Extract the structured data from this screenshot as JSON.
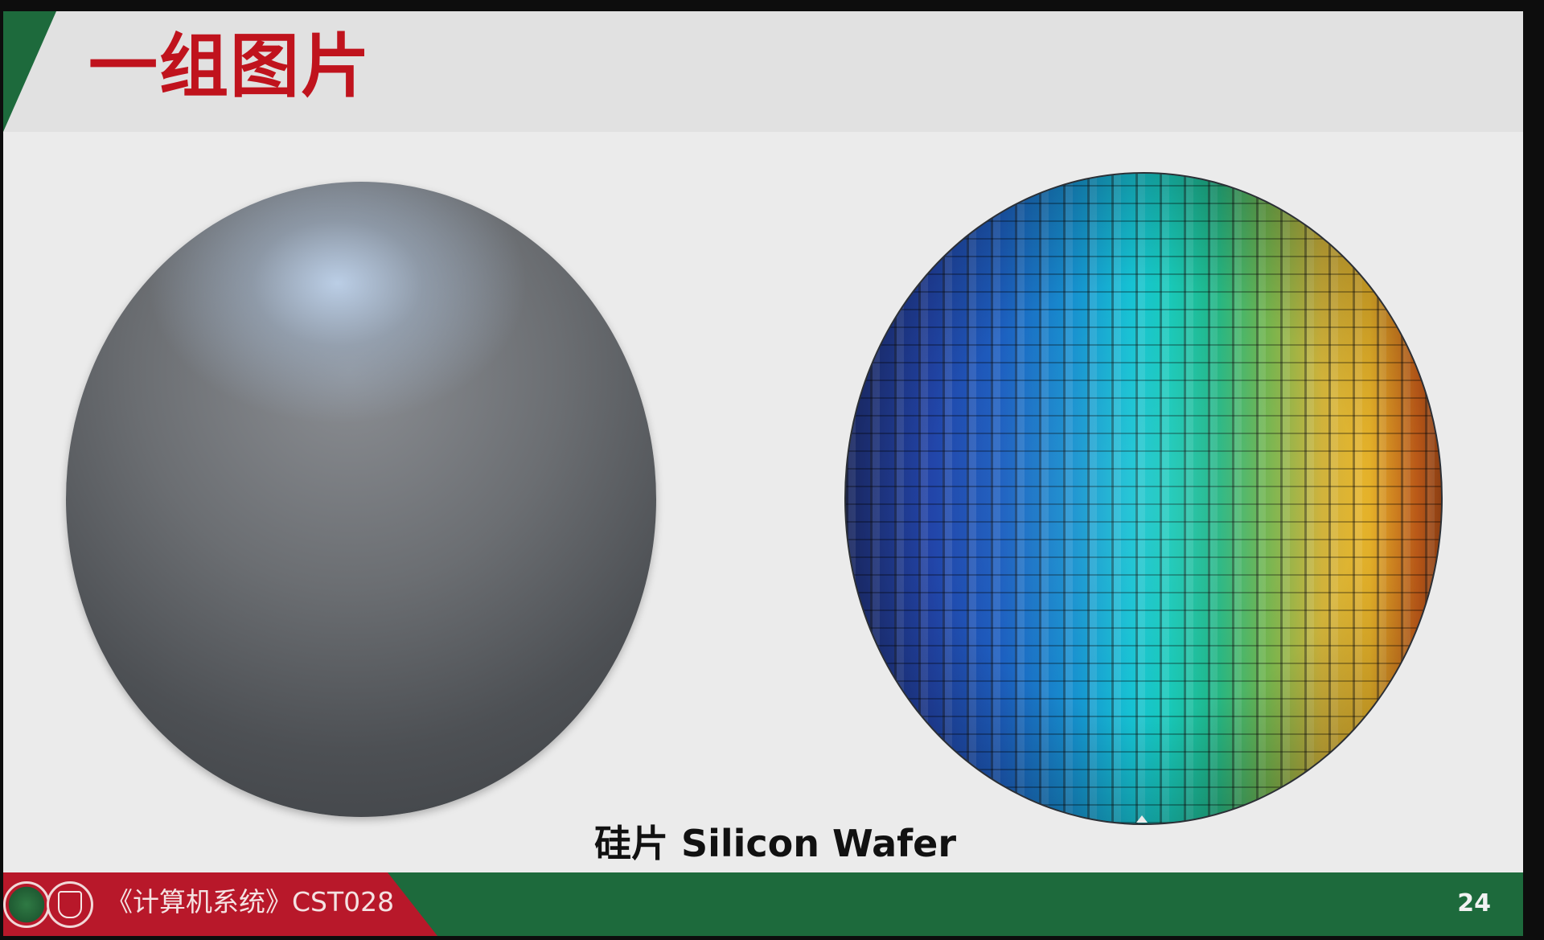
{
  "slide": {
    "title": "一组图片",
    "caption": "硅片 Silicon Wafer",
    "page_number": "24",
    "colors": {
      "title_red": "#c0131d",
      "accent_green": "#1d6a3c",
      "footer_red": "#b8182a",
      "background": "#ececec"
    }
  },
  "footer": {
    "course_label": "《计算机系统》CST028",
    "logos": [
      "university-emblem-icon",
      "school-shield-icon"
    ]
  },
  "images": {
    "left": "plain-silicon-wafer-image",
    "right": "patterned-silicon-wafer-image"
  }
}
